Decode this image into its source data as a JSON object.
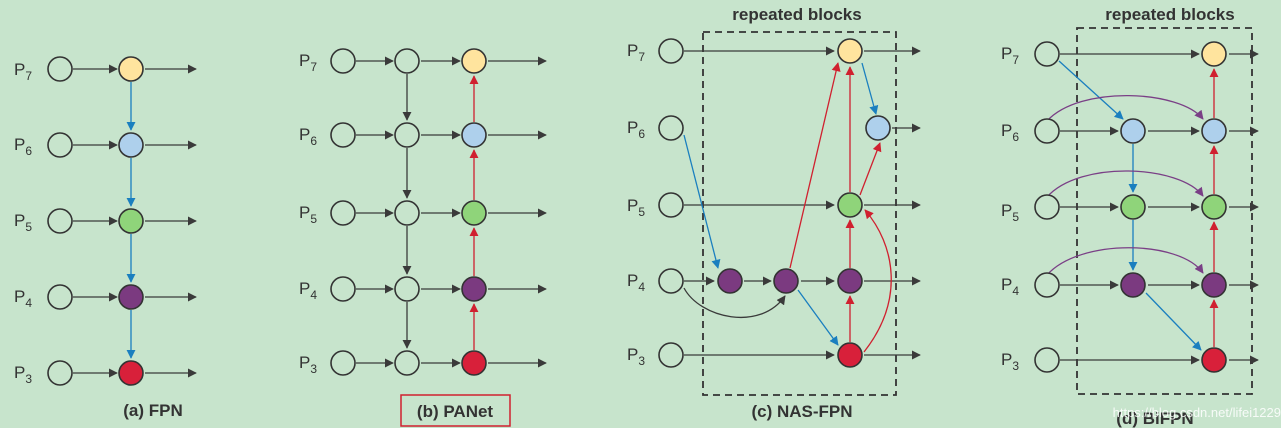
{
  "colors": {
    "background": "#c7e4cc",
    "stroke": "#333333",
    "arrow_dark": "#3a3a3a",
    "arrow_blue": "#1a7fbf",
    "arrow_red": "#d0202f",
    "arrow_purple": "#7a3f86",
    "node_white": "#c7e4cc",
    "node_yellow": "#ffe49e",
    "node_blue": "#aed0ec",
    "node_green": "#8fd47a",
    "node_purple": "#7b3a80",
    "node_red": "#d8203a",
    "caption_box": "#d0202f"
  },
  "level_labels": {
    "p7": {
      "base": "P",
      "sub": "7"
    },
    "p6": {
      "base": "P",
      "sub": "6"
    },
    "p5": {
      "base": "P",
      "sub": "5"
    },
    "p4": {
      "base": "P",
      "sub": "4"
    },
    "p3": {
      "base": "P",
      "sub": "3"
    }
  },
  "captions": {
    "fpn": "(a) FPN",
    "panet": "(b) PANet",
    "nasfpn": "(c) NAS-FPN",
    "bifpn": "(d) BiFPN"
  },
  "block_titles": {
    "nasfpn": "repeated blocks",
    "bifpn": "repeated blocks"
  },
  "watermark": "https://blog.csdn.net/lifei1229"
}
